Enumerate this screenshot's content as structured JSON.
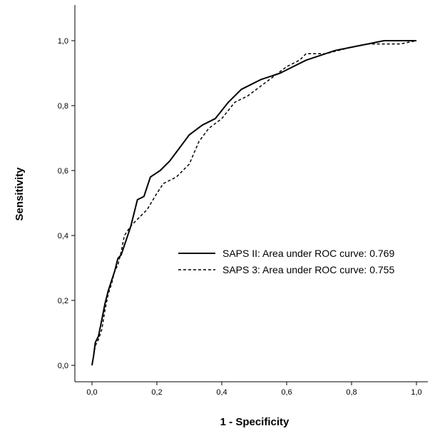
{
  "chart_data": {
    "type": "line",
    "title": "",
    "xlabel": "1 - Specificity",
    "ylabel": "Sensitivity",
    "xlim": [
      0,
      1
    ],
    "ylim": [
      0,
      1
    ],
    "x_ticks": [
      "0,0",
      "0,2",
      "0,4",
      "0,6",
      "0,8",
      "1,0"
    ],
    "y_ticks": [
      "0,0",
      "0,2",
      "0,4",
      "0,6",
      "0,8",
      "1,0"
    ],
    "grid": false,
    "legend_position": "lower-right",
    "series": [
      {
        "name": "SAPS II: Area under ROC curve: 0.769",
        "style": "solid",
        "color": "#000000",
        "x": [
          0.0,
          0.005,
          0.01,
          0.02,
          0.03,
          0.04,
          0.05,
          0.06,
          0.07,
          0.08,
          0.09,
          0.1,
          0.11,
          0.12,
          0.14,
          0.16,
          0.18,
          0.21,
          0.24,
          0.27,
          0.3,
          0.34,
          0.38,
          0.42,
          0.46,
          0.52,
          0.58,
          0.62,
          0.66,
          0.69,
          0.72,
          0.75,
          0.8,
          0.85,
          0.9,
          0.95,
          1.0
        ],
        "y": [
          0.0,
          0.03,
          0.07,
          0.09,
          0.14,
          0.19,
          0.23,
          0.26,
          0.29,
          0.33,
          0.34,
          0.37,
          0.4,
          0.43,
          0.51,
          0.52,
          0.58,
          0.6,
          0.63,
          0.67,
          0.71,
          0.74,
          0.76,
          0.81,
          0.85,
          0.88,
          0.9,
          0.92,
          0.94,
          0.95,
          0.96,
          0.97,
          0.98,
          0.99,
          1.0,
          1.0,
          1.0
        ]
      },
      {
        "name": "SAPS 3: Area under ROC curve: 0.755",
        "style": "dashed",
        "color": "#000000",
        "x": [
          0.0,
          0.005,
          0.01,
          0.02,
          0.03,
          0.04,
          0.05,
          0.06,
          0.07,
          0.08,
          0.09,
          0.1,
          0.12,
          0.14,
          0.17,
          0.2,
          0.22,
          0.26,
          0.3,
          0.33,
          0.36,
          0.4,
          0.44,
          0.48,
          0.52,
          0.56,
          0.6,
          0.64,
          0.66,
          0.69,
          0.72,
          0.76,
          0.8,
          0.85,
          0.9,
          0.95,
          1.0
        ],
        "y": [
          0.0,
          0.03,
          0.06,
          0.08,
          0.11,
          0.17,
          0.22,
          0.25,
          0.29,
          0.31,
          0.35,
          0.4,
          0.43,
          0.45,
          0.48,
          0.53,
          0.56,
          0.58,
          0.62,
          0.69,
          0.73,
          0.76,
          0.81,
          0.83,
          0.86,
          0.89,
          0.92,
          0.94,
          0.96,
          0.96,
          0.96,
          0.97,
          0.98,
          0.99,
          0.99,
          0.99,
          1.0
        ]
      }
    ]
  }
}
